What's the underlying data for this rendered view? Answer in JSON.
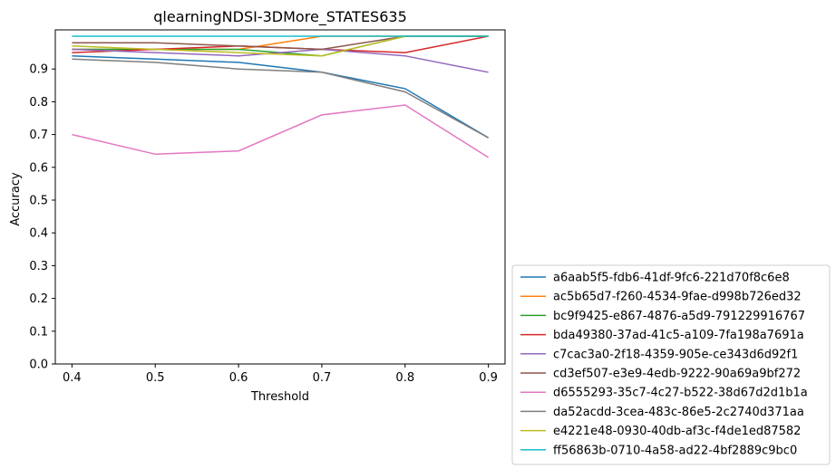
{
  "chart_data": {
    "type": "line",
    "title": "qlearningNDSI-3DMore_STATES635",
    "xlabel": "Threshold",
    "ylabel": "Accuracy",
    "x": [
      0.4,
      0.5,
      0.6,
      0.7,
      0.8,
      0.9
    ],
    "x_ticks": [
      "0.4",
      "0.5",
      "0.6",
      "0.7",
      "0.8",
      "0.9"
    ],
    "y_ticks": [
      "0.0",
      "0.1",
      "0.2",
      "0.3",
      "0.4",
      "0.5",
      "0.6",
      "0.7",
      "0.8",
      "0.9"
    ],
    "ylim": [
      0.0,
      1.0
    ],
    "grid": false,
    "legend_position": "outside-right-bottom",
    "series": [
      {
        "name": "a6aab5f5-fdb6-41df-9fc6-221d70f8c6e8",
        "color": "#1f77b4",
        "values": [
          0.94,
          0.93,
          0.92,
          0.89,
          0.84,
          0.69
        ]
      },
      {
        "name": "ac5b65d7-f260-4534-9fae-d998b726ed32",
        "color": "#ff7f0e",
        "values": [
          0.96,
          0.96,
          0.96,
          1.0,
          1.0,
          1.0
        ]
      },
      {
        "name": "bc9f9425-e867-4876-a5d9-791229916767",
        "color": "#2ca02c",
        "values": [
          0.96,
          0.96,
          0.96,
          0.94,
          1.0,
          1.0
        ]
      },
      {
        "name": "bda49380-37ad-41c5-a109-7fa198a7691a",
        "color": "#d62728",
        "values": [
          0.95,
          0.96,
          0.97,
          0.96,
          0.95,
          1.0
        ]
      },
      {
        "name": "c7cac3a0-2f18-4359-905e-ce343d6d92f1",
        "color": "#9467bd",
        "values": [
          0.96,
          0.95,
          0.94,
          0.96,
          0.94,
          0.89
        ]
      },
      {
        "name": "cd3ef507-e3e9-4edb-9222-90a69a9bf272",
        "color": "#8c564b",
        "values": [
          0.98,
          0.98,
          0.97,
          0.96,
          1.0,
          1.0
        ]
      },
      {
        "name": "d6555293-35c7-4c27-b522-38d67d2d1b1a",
        "color": "#e377c2",
        "values": [
          0.7,
          0.64,
          0.65,
          0.76,
          0.79,
          0.63
        ]
      },
      {
        "name": "da52acdd-3cea-483c-86e5-2c2740d371aa",
        "color": "#7f7f7f",
        "values": [
          0.93,
          0.92,
          0.9,
          0.89,
          0.83,
          0.69
        ]
      },
      {
        "name": "e4221e48-0930-40db-af3c-f4de1ed87582",
        "color": "#bcbd22",
        "values": [
          0.97,
          0.96,
          0.95,
          0.94,
          1.0,
          1.0
        ]
      },
      {
        "name": "ff56863b-0710-4a58-ad22-4bf2889c9bc0",
        "color": "#17becf",
        "values": [
          1.0,
          1.0,
          1.0,
          1.0,
          1.0,
          1.0
        ]
      }
    ]
  }
}
